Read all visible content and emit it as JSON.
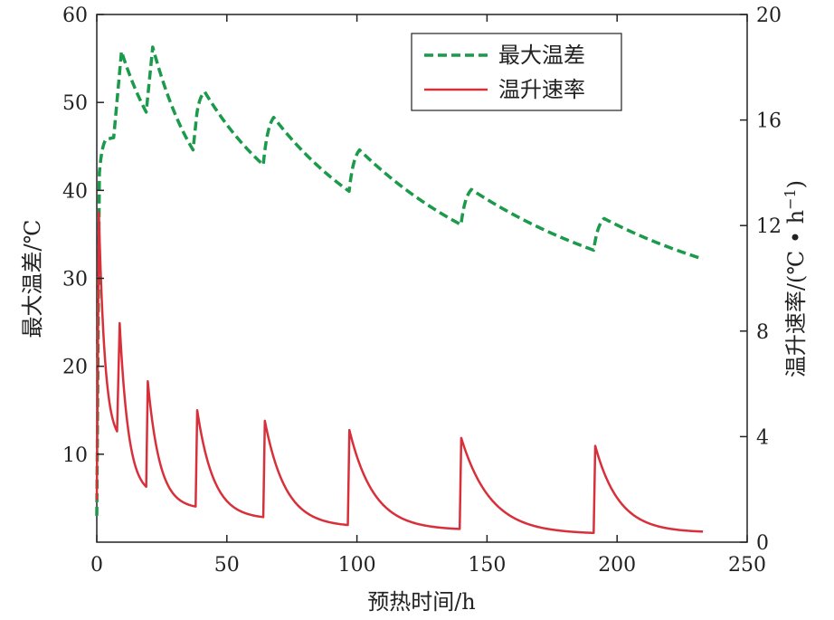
{
  "chart_data": {
    "type": "line",
    "xlabel": "预热时间/h",
    "ylabel_left": "最大温差/℃",
    "ylabel_right_parts": [
      "温升速率/(℃ • h",
      "−1",
      ")"
    ],
    "x_range": [
      0,
      250
    ],
    "y_left_range": [
      0,
      60
    ],
    "y_right_range": [
      0,
      20
    ],
    "x_ticks": [
      0,
      50,
      100,
      150,
      200,
      250
    ],
    "y_left_ticks": [
      10,
      20,
      30,
      40,
      50,
      60
    ],
    "y_right_ticks": [
      0,
      4,
      8,
      12,
      16,
      20
    ],
    "grid": false,
    "legend_position": "top-right",
    "series": [
      {
        "name": "最大温差",
        "axis": "left",
        "color": "#1a9a4a",
        "style": "dashed",
        "segments": [
          {
            "t0": 0.0,
            "t1": 1.0,
            "v0": 3.0,
            "v1": 42.0,
            "k": 0
          },
          {
            "t0": 1.0,
            "t1": 3.5,
            "v0": 42.0,
            "v1": 45.8,
            "k": 2
          },
          {
            "t0": 3.5,
            "t1": 6.5,
            "v0": 45.8,
            "v1": 46.0,
            "k": 0
          },
          {
            "t0": 6.5,
            "t1": 9.5,
            "v0": 46.0,
            "v1": 55.8,
            "k": 0
          },
          {
            "t0": 9.5,
            "t1": 19.0,
            "v0": 55.8,
            "v1": 48.9,
            "k": 0.5
          },
          {
            "t0": 19.0,
            "t1": 21.5,
            "v0": 48.9,
            "v1": 56.3,
            "k": 0
          },
          {
            "t0": 21.5,
            "t1": 37.0,
            "v0": 56.3,
            "v1": 44.6,
            "k": 0.8
          },
          {
            "t0": 37.0,
            "t1": 38.5,
            "v0": 44.6,
            "v1": 48.8,
            "k": 0
          },
          {
            "t0": 38.5,
            "t1": 41.5,
            "v0": 48.8,
            "v1": 51.2,
            "k": 2
          },
          {
            "t0": 41.5,
            "t1": 64.0,
            "v0": 51.2,
            "v1": 42.9,
            "k": 0.6
          },
          {
            "t0": 64.0,
            "t1": 68.0,
            "v0": 42.9,
            "v1": 48.3,
            "k": 2
          },
          {
            "t0": 68.0,
            "t1": 97.0,
            "v0": 48.3,
            "v1": 39.9,
            "k": 0.6
          },
          {
            "t0": 97.0,
            "t1": 101.0,
            "v0": 39.9,
            "v1": 44.6,
            "k": 2
          },
          {
            "t0": 101.0,
            "t1": 140.0,
            "v0": 44.6,
            "v1": 36.1,
            "k": 0.6
          },
          {
            "t0": 140.0,
            "t1": 144.0,
            "v0": 36.1,
            "v1": 40.1,
            "k": 2
          },
          {
            "t0": 144.0,
            "t1": 191.0,
            "v0": 40.1,
            "v1": 33.2,
            "k": 0.6
          },
          {
            "t0": 191.0,
            "t1": 195.0,
            "v0": 33.2,
            "v1": 36.8,
            "k": 2
          },
          {
            "t0": 195.0,
            "t1": 233.0,
            "v0": 36.8,
            "v1": 32.2,
            "k": 0.5
          }
        ]
      },
      {
        "name": "温升速率",
        "axis": "right",
        "color": "#d8303a",
        "style": "solid",
        "segments": [
          {
            "t0": 0.0,
            "t1": 0.8,
            "v0": 1.6,
            "v1": 12.5,
            "k": 0
          },
          {
            "t0": 0.8,
            "t1": 7.8,
            "v0": 12.5,
            "v1": 4.2,
            "k": 3
          },
          {
            "t0": 7.8,
            "t1": 8.8,
            "v0": 4.2,
            "v1": 8.3,
            "k": 0
          },
          {
            "t0": 8.8,
            "t1": 19.0,
            "v0": 8.3,
            "v1": 2.1,
            "k": 3
          },
          {
            "t0": 19.0,
            "t1": 19.6,
            "v0": 2.1,
            "v1": 6.1,
            "k": 0
          },
          {
            "t0": 19.6,
            "t1": 38.0,
            "v0": 6.1,
            "v1": 1.35,
            "k": 4
          },
          {
            "t0": 38.0,
            "t1": 38.6,
            "v0": 1.35,
            "v1": 5.0,
            "k": 0
          },
          {
            "t0": 38.6,
            "t1": 64.0,
            "v0": 5.0,
            "v1": 0.95,
            "k": 4
          },
          {
            "t0": 64.0,
            "t1": 64.6,
            "v0": 0.95,
            "v1": 4.6,
            "k": 0
          },
          {
            "t0": 64.6,
            "t1": 96.5,
            "v0": 4.6,
            "v1": 0.65,
            "k": 4
          },
          {
            "t0": 96.5,
            "t1": 97.1,
            "v0": 0.65,
            "v1": 4.25,
            "k": 0
          },
          {
            "t0": 97.1,
            "t1": 139.5,
            "v0": 4.25,
            "v1": 0.5,
            "k": 4.5
          },
          {
            "t0": 139.5,
            "t1": 140.1,
            "v0": 0.5,
            "v1": 3.95,
            "k": 0
          },
          {
            "t0": 140.1,
            "t1": 191.0,
            "v0": 3.95,
            "v1": 0.35,
            "k": 4.5
          },
          {
            "t0": 191.0,
            "t1": 191.6,
            "v0": 0.35,
            "v1": 3.65,
            "k": 0
          },
          {
            "t0": 191.6,
            "t1": 233.0,
            "v0": 3.65,
            "v1": 0.4,
            "k": 4.5
          }
        ]
      }
    ]
  }
}
